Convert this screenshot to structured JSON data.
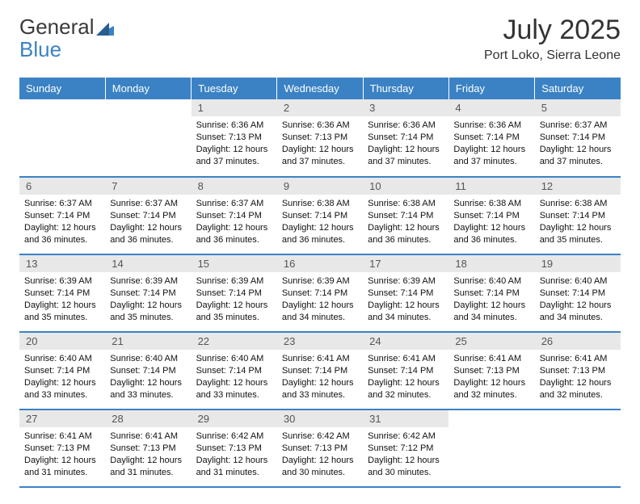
{
  "logo": {
    "text_gray": "General",
    "text_blue": "Blue"
  },
  "header": {
    "month_title": "July 2025",
    "location": "Port Loko, Sierra Leone"
  },
  "colors": {
    "header_bg": "#3b82c4",
    "header_text": "#ffffff",
    "daynum_bg": "#e8e8e8",
    "daynum_text": "#555555",
    "row_border": "#3b82c4",
    "logo_gray": "#3a3a3a",
    "logo_blue": "#3b82c4"
  },
  "weekdays": [
    "Sunday",
    "Monday",
    "Tuesday",
    "Wednesday",
    "Thursday",
    "Friday",
    "Saturday"
  ],
  "weeks": [
    [
      {
        "empty": true
      },
      {
        "empty": true
      },
      {
        "day": "1",
        "sunrise": "Sunrise: 6:36 AM",
        "sunset": "Sunset: 7:13 PM",
        "daylight": "Daylight: 12 hours and 37 minutes."
      },
      {
        "day": "2",
        "sunrise": "Sunrise: 6:36 AM",
        "sunset": "Sunset: 7:13 PM",
        "daylight": "Daylight: 12 hours and 37 minutes."
      },
      {
        "day": "3",
        "sunrise": "Sunrise: 6:36 AM",
        "sunset": "Sunset: 7:14 PM",
        "daylight": "Daylight: 12 hours and 37 minutes."
      },
      {
        "day": "4",
        "sunrise": "Sunrise: 6:36 AM",
        "sunset": "Sunset: 7:14 PM",
        "daylight": "Daylight: 12 hours and 37 minutes."
      },
      {
        "day": "5",
        "sunrise": "Sunrise: 6:37 AM",
        "sunset": "Sunset: 7:14 PM",
        "daylight": "Daylight: 12 hours and 37 minutes."
      }
    ],
    [
      {
        "day": "6",
        "sunrise": "Sunrise: 6:37 AM",
        "sunset": "Sunset: 7:14 PM",
        "daylight": "Daylight: 12 hours and 36 minutes."
      },
      {
        "day": "7",
        "sunrise": "Sunrise: 6:37 AM",
        "sunset": "Sunset: 7:14 PM",
        "daylight": "Daylight: 12 hours and 36 minutes."
      },
      {
        "day": "8",
        "sunrise": "Sunrise: 6:37 AM",
        "sunset": "Sunset: 7:14 PM",
        "daylight": "Daylight: 12 hours and 36 minutes."
      },
      {
        "day": "9",
        "sunrise": "Sunrise: 6:38 AM",
        "sunset": "Sunset: 7:14 PM",
        "daylight": "Daylight: 12 hours and 36 minutes."
      },
      {
        "day": "10",
        "sunrise": "Sunrise: 6:38 AM",
        "sunset": "Sunset: 7:14 PM",
        "daylight": "Daylight: 12 hours and 36 minutes."
      },
      {
        "day": "11",
        "sunrise": "Sunrise: 6:38 AM",
        "sunset": "Sunset: 7:14 PM",
        "daylight": "Daylight: 12 hours and 36 minutes."
      },
      {
        "day": "12",
        "sunrise": "Sunrise: 6:38 AM",
        "sunset": "Sunset: 7:14 PM",
        "daylight": "Daylight: 12 hours and 35 minutes."
      }
    ],
    [
      {
        "day": "13",
        "sunrise": "Sunrise: 6:39 AM",
        "sunset": "Sunset: 7:14 PM",
        "daylight": "Daylight: 12 hours and 35 minutes."
      },
      {
        "day": "14",
        "sunrise": "Sunrise: 6:39 AM",
        "sunset": "Sunset: 7:14 PM",
        "daylight": "Daylight: 12 hours and 35 minutes."
      },
      {
        "day": "15",
        "sunrise": "Sunrise: 6:39 AM",
        "sunset": "Sunset: 7:14 PM",
        "daylight": "Daylight: 12 hours and 35 minutes."
      },
      {
        "day": "16",
        "sunrise": "Sunrise: 6:39 AM",
        "sunset": "Sunset: 7:14 PM",
        "daylight": "Daylight: 12 hours and 34 minutes."
      },
      {
        "day": "17",
        "sunrise": "Sunrise: 6:39 AM",
        "sunset": "Sunset: 7:14 PM",
        "daylight": "Daylight: 12 hours and 34 minutes."
      },
      {
        "day": "18",
        "sunrise": "Sunrise: 6:40 AM",
        "sunset": "Sunset: 7:14 PM",
        "daylight": "Daylight: 12 hours and 34 minutes."
      },
      {
        "day": "19",
        "sunrise": "Sunrise: 6:40 AM",
        "sunset": "Sunset: 7:14 PM",
        "daylight": "Daylight: 12 hours and 34 minutes."
      }
    ],
    [
      {
        "day": "20",
        "sunrise": "Sunrise: 6:40 AM",
        "sunset": "Sunset: 7:14 PM",
        "daylight": "Daylight: 12 hours and 33 minutes."
      },
      {
        "day": "21",
        "sunrise": "Sunrise: 6:40 AM",
        "sunset": "Sunset: 7:14 PM",
        "daylight": "Daylight: 12 hours and 33 minutes."
      },
      {
        "day": "22",
        "sunrise": "Sunrise: 6:40 AM",
        "sunset": "Sunset: 7:14 PM",
        "daylight": "Daylight: 12 hours and 33 minutes."
      },
      {
        "day": "23",
        "sunrise": "Sunrise: 6:41 AM",
        "sunset": "Sunset: 7:14 PM",
        "daylight": "Daylight: 12 hours and 33 minutes."
      },
      {
        "day": "24",
        "sunrise": "Sunrise: 6:41 AM",
        "sunset": "Sunset: 7:14 PM",
        "daylight": "Daylight: 12 hours and 32 minutes."
      },
      {
        "day": "25",
        "sunrise": "Sunrise: 6:41 AM",
        "sunset": "Sunset: 7:13 PM",
        "daylight": "Daylight: 12 hours and 32 minutes."
      },
      {
        "day": "26",
        "sunrise": "Sunrise: 6:41 AM",
        "sunset": "Sunset: 7:13 PM",
        "daylight": "Daylight: 12 hours and 32 minutes."
      }
    ],
    [
      {
        "day": "27",
        "sunrise": "Sunrise: 6:41 AM",
        "sunset": "Sunset: 7:13 PM",
        "daylight": "Daylight: 12 hours and 31 minutes."
      },
      {
        "day": "28",
        "sunrise": "Sunrise: 6:41 AM",
        "sunset": "Sunset: 7:13 PM",
        "daylight": "Daylight: 12 hours and 31 minutes."
      },
      {
        "day": "29",
        "sunrise": "Sunrise: 6:42 AM",
        "sunset": "Sunset: 7:13 PM",
        "daylight": "Daylight: 12 hours and 31 minutes."
      },
      {
        "day": "30",
        "sunrise": "Sunrise: 6:42 AM",
        "sunset": "Sunset: 7:13 PM",
        "daylight": "Daylight: 12 hours and 30 minutes."
      },
      {
        "day": "31",
        "sunrise": "Sunrise: 6:42 AM",
        "sunset": "Sunset: 7:12 PM",
        "daylight": "Daylight: 12 hours and 30 minutes."
      },
      {
        "empty": true
      },
      {
        "empty": true
      }
    ]
  ]
}
